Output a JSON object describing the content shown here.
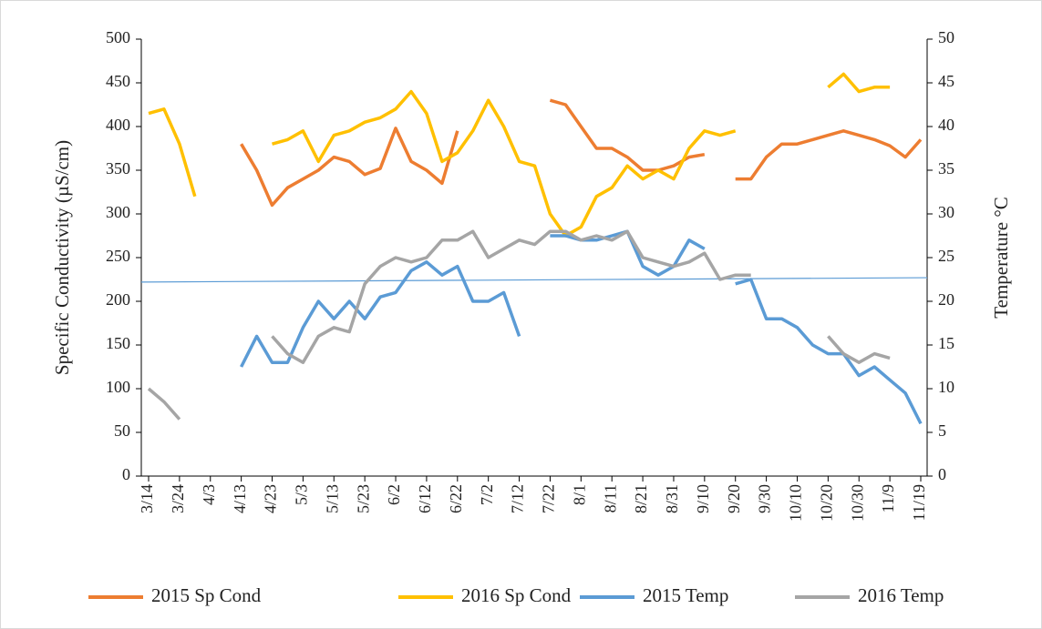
{
  "chart_data": {
    "type": "line",
    "y_label": "Specific Conductivity (µS/cm)",
    "y2_label": "Temperature °C",
    "legend": "bottom",
    "ylim": [
      0,
      500
    ],
    "yticks": [
      0,
      50,
      100,
      150,
      200,
      250,
      300,
      350,
      400,
      450,
      500
    ],
    "y2lim": [
      0,
      50
    ],
    "y2ticks": [
      0,
      5,
      10,
      15,
      20,
      25,
      30,
      35,
      40,
      45,
      50
    ],
    "categories": [
      "3/14",
      null,
      "3/24",
      null,
      "4/3",
      null,
      "4/13",
      null,
      "4/23",
      null,
      "5/3",
      null,
      "5/13",
      null,
      "5/23",
      null,
      "6/2",
      null,
      "6/12",
      null,
      "6/22",
      null,
      "7/2",
      null,
      "7/12",
      null,
      "7/22",
      null,
      "8/1",
      null,
      "8/11",
      null,
      "8/21",
      null,
      "8/31",
      null,
      "9/10",
      null,
      "9/20",
      null,
      "9/30",
      null,
      "10/10",
      null,
      "10/20",
      null,
      "10/30",
      null,
      "11/9",
      null,
      "11/19"
    ],
    "series": [
      {
        "name": "2015 Sp Cond",
        "color": "#ed7d31",
        "axis": "y",
        "values": [
          null,
          null,
          null,
          null,
          null,
          null,
          380,
          350,
          310,
          330,
          340,
          350,
          365,
          360,
          345,
          352,
          398,
          360,
          350,
          335,
          395,
          null,
          null,
          null,
          null,
          null,
          430,
          425,
          400,
          375,
          375,
          365,
          350,
          350,
          355,
          365,
          368,
          null,
          340,
          340,
          365,
          380,
          380,
          385,
          390,
          395,
          390,
          385,
          378,
          365,
          385
        ]
      },
      {
        "name": "2016 Sp Cond",
        "color": "#ffc000",
        "axis": "y",
        "values": [
          415,
          420,
          380,
          320,
          null,
          null,
          null,
          null,
          380,
          385,
          395,
          360,
          390,
          395,
          405,
          410,
          420,
          440,
          415,
          360,
          370,
          395,
          430,
          400,
          360,
          355,
          300,
          275,
          285,
          320,
          330,
          355,
          340,
          350,
          340,
          375,
          395,
          390,
          395,
          null,
          null,
          null,
          null,
          null,
          445,
          460,
          440,
          445,
          445,
          null,
          null
        ]
      },
      {
        "name": "2015 Temp",
        "color": "#5b9bd5",
        "axis": "y2",
        "values": [
          null,
          null,
          null,
          null,
          null,
          null,
          12.5,
          16,
          13,
          13,
          17,
          20,
          18,
          20,
          18,
          20.5,
          21,
          23.5,
          24.5,
          23,
          24,
          20,
          20,
          21,
          16,
          null,
          27.5,
          27.5,
          27,
          27,
          27.5,
          28,
          24,
          23,
          24,
          27,
          26,
          null,
          22,
          22.5,
          18,
          18,
          17,
          15,
          14,
          14,
          11.5,
          12.5,
          11,
          9.5,
          6
        ]
      },
      {
        "name": "2016 Temp",
        "color": "#a5a5a5",
        "axis": "y2",
        "values": [
          10,
          8.5,
          6.5,
          null,
          null,
          null,
          null,
          null,
          16,
          14,
          13,
          16,
          17,
          16.5,
          22,
          24,
          25,
          24.5,
          25,
          27,
          27,
          28,
          25,
          26,
          27,
          26.5,
          28,
          28,
          27,
          27.5,
          27,
          28,
          25,
          24.5,
          24,
          24.5,
          25.5,
          22.5,
          23,
          23,
          null,
          null,
          null,
          null,
          16,
          14,
          13,
          14,
          13.5,
          null,
          null
        ]
      }
    ],
    "reference_line": {
      "color": "#5b9bd5",
      "values": [
        222,
        227
      ]
    }
  }
}
